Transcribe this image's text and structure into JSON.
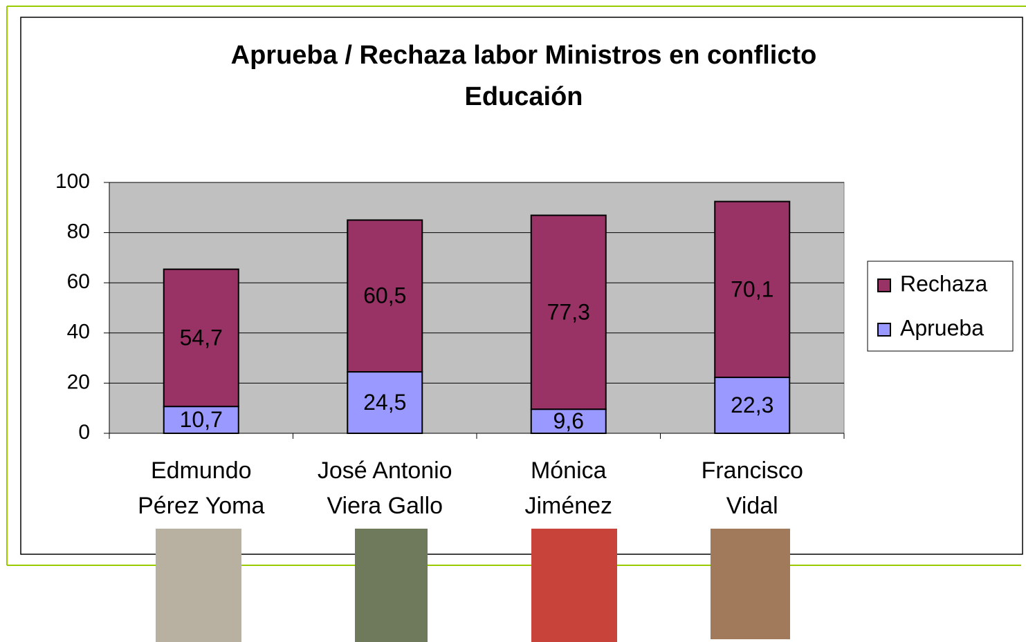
{
  "chart_data": {
    "type": "stacked_bar",
    "title": [
      "Aprueba / Rechaza labor Ministros en conflicto",
      "Educaión"
    ],
    "categories": [
      [
        "Edmundo",
        "Pérez Yoma"
      ],
      [
        "José Antonio",
        "Viera Gallo"
      ],
      [
        "Mónica",
        "Jiménez"
      ],
      [
        "Francisco",
        "Vidal"
      ]
    ],
    "series": [
      {
        "name": "Aprueba",
        "color": "#9999ff",
        "values": [
          10.7,
          24.5,
          9.6,
          22.3
        ],
        "value_labels": [
          "10,7",
          "24,5",
          "9,6",
          "22,3"
        ]
      },
      {
        "name": "Rechaza",
        "color": "#993366",
        "values": [
          54.7,
          60.5,
          77.3,
          70.1
        ],
        "value_labels": [
          "54,7",
          "60,5",
          "77,3",
          "70,1"
        ]
      }
    ],
    "ylim": [
      0,
      100
    ],
    "yticks": [
      0,
      20,
      40,
      60,
      80,
      100
    ],
    "grid": true,
    "legend": "right"
  }
}
